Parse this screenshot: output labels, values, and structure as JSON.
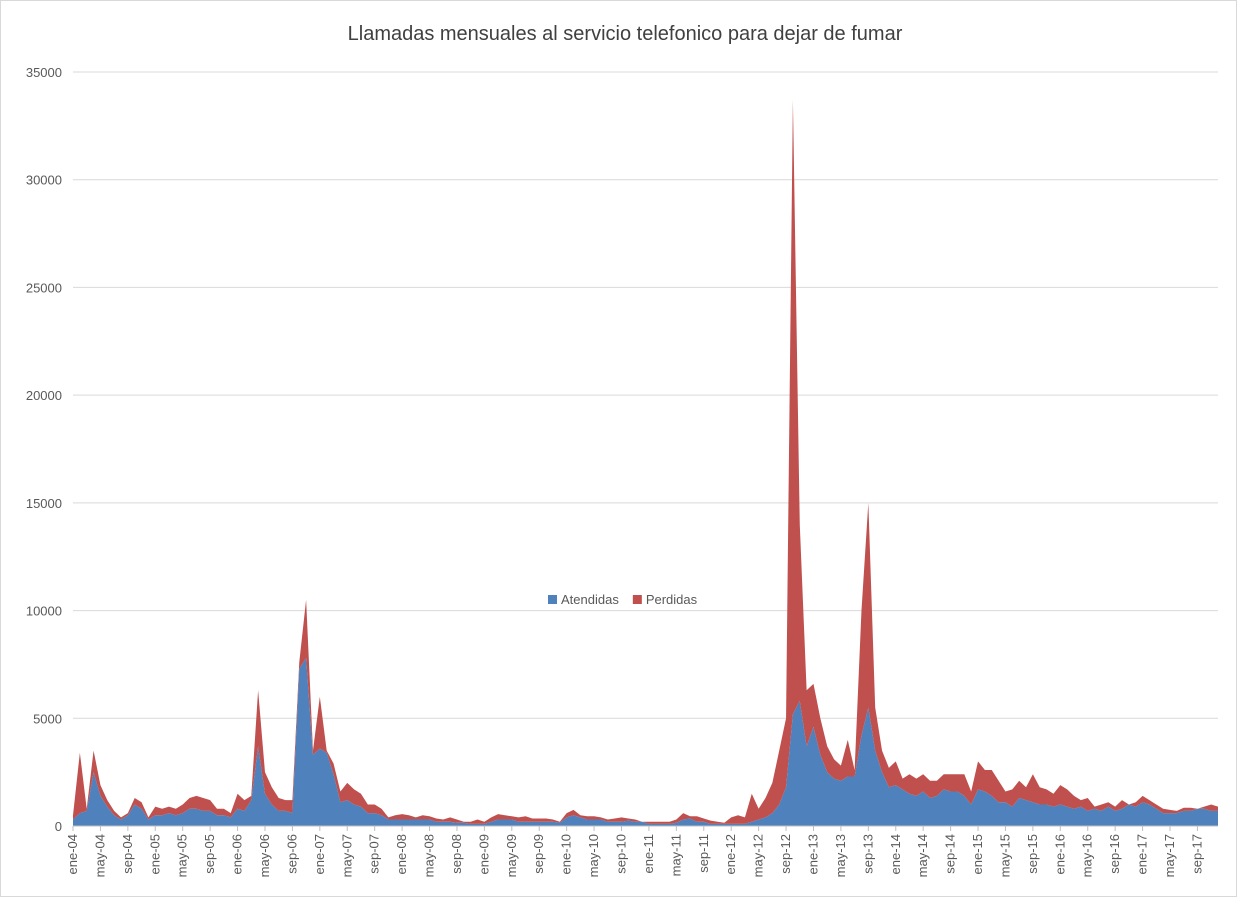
{
  "chart_data": {
    "type": "stacked_area",
    "title": "Llamadas mensuales al servicio telefonico para dejar de fumar",
    "categories": [
      "ene-04",
      null,
      null,
      null,
      "may-04",
      null,
      null,
      null,
      "sep-04",
      null,
      null,
      null,
      "ene-05",
      null,
      null,
      null,
      "may-05",
      null,
      null,
      null,
      "sep-05",
      null,
      null,
      null,
      "ene-06",
      null,
      null,
      null,
      "may-06",
      null,
      null,
      null,
      "sep-06",
      null,
      null,
      null,
      "ene-07",
      null,
      null,
      null,
      "may-07",
      null,
      null,
      null,
      "sep-07",
      null,
      null,
      null,
      "ene-08",
      null,
      null,
      null,
      "may-08",
      null,
      null,
      null,
      "sep-08",
      null,
      null,
      null,
      "ene-09",
      null,
      null,
      null,
      "may-09",
      null,
      null,
      null,
      "sep-09",
      null,
      null,
      null,
      "ene-10",
      null,
      null,
      null,
      "may-10",
      null,
      null,
      null,
      "sep-10",
      null,
      null,
      null,
      "ene-11",
      null,
      null,
      null,
      "may-11",
      null,
      null,
      null,
      "sep-11",
      null,
      null,
      null,
      "ene-12",
      null,
      null,
      null,
      "may-12",
      null,
      null,
      null,
      "sep-12",
      null,
      null,
      null,
      "ene-13",
      null,
      null,
      null,
      "may-13",
      null,
      null,
      null,
      "sep-13",
      null,
      null,
      null,
      "ene-14",
      null,
      null,
      null,
      "may-14",
      null,
      null,
      null,
      "sep-14",
      null,
      null,
      null,
      "ene-15",
      null,
      null,
      null,
      "may-15",
      null,
      null,
      null,
      "sep-15",
      null,
      null,
      null,
      "ene-16",
      null,
      null,
      null,
      "may-16",
      null,
      null,
      null,
      "sep-16",
      null,
      null,
      null,
      "ene-17",
      null,
      null,
      null,
      "may-17",
      null,
      null,
      null,
      "sep-17",
      null,
      null,
      null
    ],
    "series": [
      {
        "name": "Atendidas",
        "color": "#4f81bd",
        "values": [
          300,
          600,
          700,
          2500,
          1400,
          900,
          500,
          300,
          500,
          1000,
          800,
          300,
          500,
          500,
          600,
          500,
          600,
          800,
          800,
          700,
          700,
          500,
          500,
          400,
          800,
          700,
          1200,
          3700,
          1500,
          1000,
          700,
          700,
          600,
          7300,
          7800,
          3300,
          3600,
          3400,
          2400,
          1100,
          1200,
          1000,
          900,
          600,
          600,
          500,
          300,
          300,
          300,
          300,
          300,
          300,
          300,
          200,
          200,
          200,
          150,
          150,
          100,
          100,
          100,
          200,
          300,
          300,
          300,
          200,
          200,
          200,
          200,
          200,
          200,
          150,
          400,
          500,
          400,
          300,
          300,
          300,
          200,
          200,
          200,
          250,
          200,
          200,
          100,
          100,
          100,
          100,
          150,
          300,
          350,
          200,
          200,
          100,
          100,
          100,
          100,
          100,
          100,
          200,
          300,
          400,
          600,
          1000,
          1800,
          5200,
          5800,
          3700,
          4600,
          3300,
          2500,
          2200,
          2100,
          2300,
          2300,
          4200,
          5500,
          3500,
          2500,
          1800,
          1900,
          1700,
          1500,
          1400,
          1600,
          1300,
          1400,
          1700,
          1600,
          1600,
          1400,
          1000,
          1700,
          1600,
          1400,
          1100,
          1100,
          900,
          1300,
          1200,
          1100,
          1000,
          1000,
          900,
          1000,
          900,
          800,
          900,
          700,
          800,
          700,
          900,
          700,
          800,
          1000,
          900,
          1100,
          1000,
          800,
          600,
          600,
          600,
          700,
          700,
          800,
          800,
          700,
          700
        ]
      },
      {
        "name": "Perdidas",
        "color": "#c0504d",
        "values": [
          200,
          2800,
          100,
          1000,
          500,
          300,
          200,
          100,
          100,
          300,
          300,
          100,
          400,
          300,
          300,
          300,
          400,
          500,
          600,
          600,
          500,
          300,
          300,
          200,
          700,
          500,
          200,
          2600,
          1000,
          800,
          600,
          500,
          600,
          300,
          2700,
          200,
          2400,
          100,
          500,
          500,
          800,
          700,
          600,
          400,
          400,
          300,
          100,
          200,
          250,
          200,
          100,
          200,
          150,
          150,
          100,
          200,
          150,
          50,
          100,
          200,
          100,
          200,
          250,
          200,
          150,
          200,
          250,
          150,
          150,
          150,
          100,
          50,
          200,
          250,
          100,
          150,
          150,
          100,
          100,
          150,
          200,
          100,
          100,
          0,
          100,
          100,
          100,
          100,
          150,
          300,
          100,
          250,
          150,
          150,
          100,
          50,
          300,
          400,
          300,
          1300,
          500,
          900,
          1400,
          2500,
          3200,
          28500,
          8200,
          2600,
          2000,
          1700,
          1200,
          900,
          700,
          1700,
          300,
          5800,
          9500,
          2000,
          1000,
          900,
          1100,
          500,
          900,
          800,
          800,
          800,
          700,
          700,
          800,
          800,
          1000,
          600,
          1300,
          1000,
          1200,
          1000,
          500,
          800,
          800,
          600,
          1300,
          800,
          700,
          600,
          900,
          800,
          600,
          300,
          600,
          100,
          300,
          200,
          200,
          400,
          0,
          200,
          300,
          200,
          200,
          200,
          150,
          100,
          150,
          150,
          0,
          100,
          300,
          200
        ]
      }
    ],
    "ylim": [
      0,
      35000
    ],
    "yticks": [
      0,
      5000,
      10000,
      15000,
      20000,
      25000,
      30000,
      35000
    ],
    "grid": true,
    "legend": "center"
  }
}
